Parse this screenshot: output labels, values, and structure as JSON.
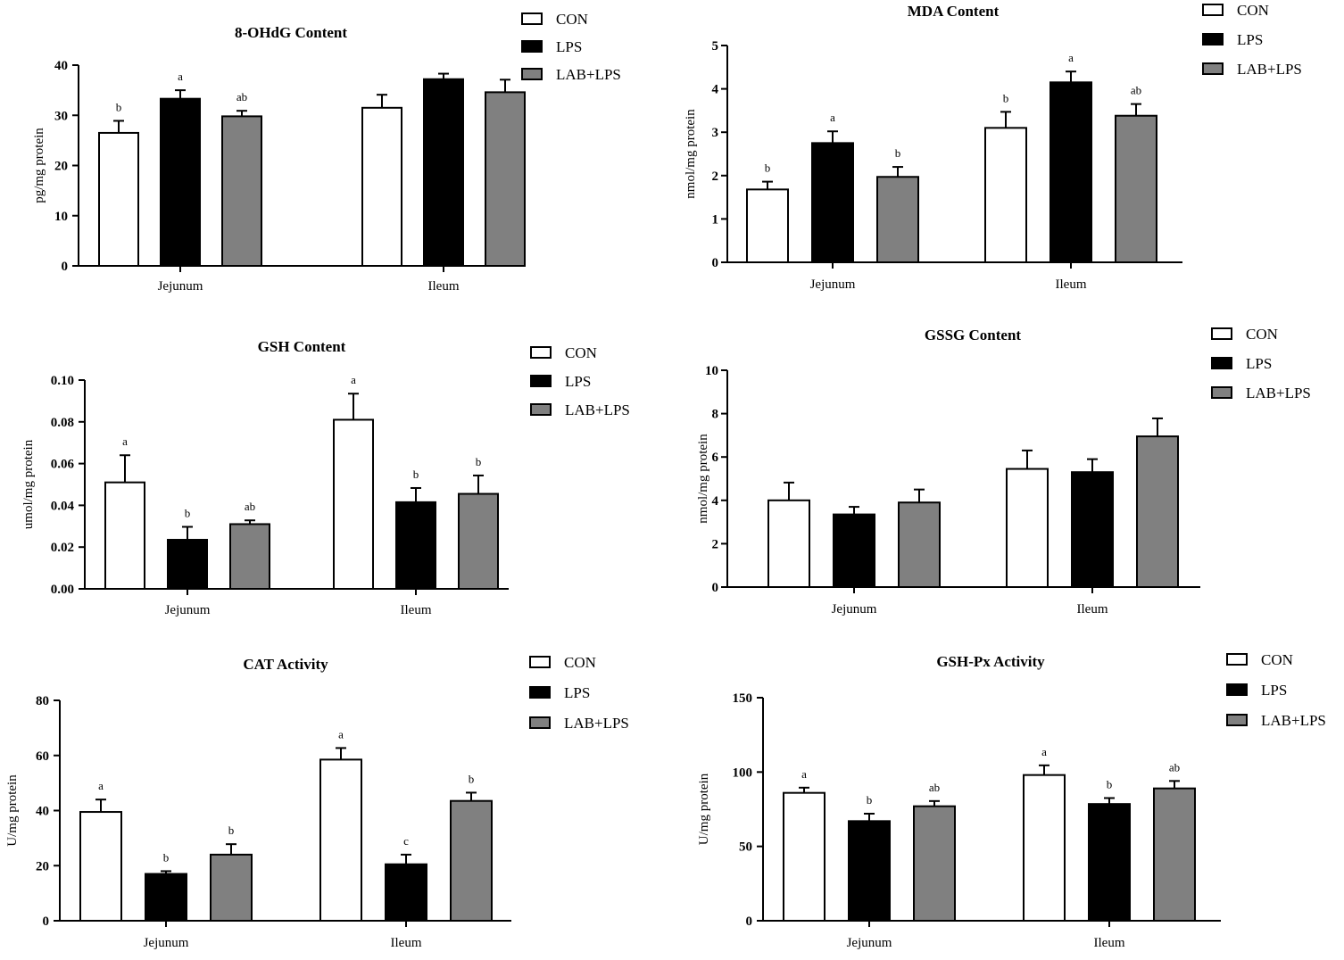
{
  "colors": {
    "CON": "#ffffff",
    "LPS": "#000000",
    "LAB+LPS": "#808080",
    "axis": "#000000"
  },
  "chart_data": [
    {
      "type": "bar",
      "title": "8-OHdG Content",
      "ylabel": "pg/mg protein",
      "categories": [
        "Jejunum",
        "Ileum"
      ],
      "ylim": [
        0,
        40
      ],
      "yticks": [
        0,
        10,
        20,
        30,
        40
      ],
      "tick_labels": [
        "0",
        "10",
        "20",
        "30",
        "40"
      ],
      "legend_position": "top-right",
      "grid": false,
      "series": [
        {
          "name": "CON",
          "values": [
            26.5,
            31.5
          ],
          "errors": [
            2.4,
            2.6
          ],
          "labels": [
            "b",
            ""
          ]
        },
        {
          "name": "LPS",
          "values": [
            33.3,
            37.2
          ],
          "errors": [
            1.7,
            1.1
          ],
          "labels": [
            "a",
            ""
          ]
        },
        {
          "name": "LAB+LPS",
          "values": [
            29.8,
            34.6
          ],
          "errors": [
            1.1,
            2.5
          ],
          "labels": [
            "ab",
            ""
          ]
        }
      ]
    },
    {
      "type": "bar",
      "title": "MDA Content",
      "ylabel": "nmol/mg protein",
      "categories": [
        "Jejunum",
        "Ileum"
      ],
      "ylim": [
        0,
        5
      ],
      "yticks": [
        0,
        1,
        2,
        3,
        4,
        5
      ],
      "tick_labels": [
        "0",
        "1",
        "2",
        "3",
        "4",
        "5"
      ],
      "legend_position": "top-right",
      "grid": false,
      "series": [
        {
          "name": "CON",
          "values": [
            1.68,
            3.1
          ],
          "errors": [
            0.18,
            0.37
          ],
          "labels": [
            "b",
            "b"
          ]
        },
        {
          "name": "LPS",
          "values": [
            2.75,
            4.15
          ],
          "errors": [
            0.27,
            0.25
          ],
          "labels": [
            "a",
            "a"
          ]
        },
        {
          "name": "LAB+LPS",
          "values": [
            1.97,
            3.38
          ],
          "errors": [
            0.23,
            0.27
          ],
          "labels": [
            "b",
            "ab"
          ]
        }
      ]
    },
    {
      "type": "bar",
      "title": "GSH Content",
      "ylabel": "umol/mg protein",
      "categories": [
        "Jejunum",
        "Ileum"
      ],
      "ylim": [
        0,
        0.1
      ],
      "yticks": [
        0,
        0.02,
        0.04,
        0.06,
        0.08,
        0.1
      ],
      "tick_labels": [
        "0.00",
        "0.02",
        "0.04",
        "0.06",
        "0.08",
        "0.10"
      ],
      "legend_position": "top-right",
      "grid": false,
      "series": [
        {
          "name": "CON",
          "values": [
            0.051,
            0.081
          ],
          "errors": [
            0.013,
            0.0125
          ],
          "labels": [
            "a",
            "a"
          ]
        },
        {
          "name": "LPS",
          "values": [
            0.0235,
            0.0415
          ],
          "errors": [
            0.0062,
            0.0068
          ],
          "labels": [
            "b",
            "b"
          ]
        },
        {
          "name": "LAB+LPS",
          "values": [
            0.031,
            0.0455
          ],
          "errors": [
            0.0018,
            0.0088
          ],
          "labels": [
            "ab",
            "b"
          ]
        }
      ]
    },
    {
      "type": "bar",
      "title": "GSSG Content",
      "ylabel": "nmol/mg protein",
      "categories": [
        "Jejunum",
        "Ileum"
      ],
      "ylim": [
        0,
        10
      ],
      "yticks": [
        0,
        2,
        4,
        6,
        8,
        10
      ],
      "tick_labels": [
        "0",
        "2",
        "4",
        "6",
        "8",
        "10"
      ],
      "legend_position": "top-right",
      "grid": false,
      "series": [
        {
          "name": "CON",
          "values": [
            4.0,
            5.45
          ],
          "errors": [
            0.82,
            0.85
          ],
          "labels": [
            "",
            ""
          ]
        },
        {
          "name": "LPS",
          "values": [
            3.35,
            5.3
          ],
          "errors": [
            0.35,
            0.6
          ],
          "labels": [
            "",
            ""
          ]
        },
        {
          "name": "LAB+LPS",
          "values": [
            3.9,
            6.95
          ],
          "errors": [
            0.6,
            0.83
          ],
          "labels": [
            "",
            ""
          ]
        }
      ]
    },
    {
      "type": "bar",
      "title": "CAT Activity",
      "ylabel": "U/mg protein",
      "categories": [
        "Jejunum",
        "Ileum"
      ],
      "ylim": [
        0,
        80
      ],
      "yticks": [
        0,
        20,
        40,
        60,
        80
      ],
      "tick_labels": [
        "0",
        "20",
        "40",
        "60",
        "80"
      ],
      "legend_position": "top-right",
      "grid": false,
      "series": [
        {
          "name": "CON",
          "values": [
            39.5,
            58.5
          ],
          "errors": [
            4.5,
            4.2
          ],
          "labels": [
            "a",
            "a"
          ]
        },
        {
          "name": "LPS",
          "values": [
            17.0,
            20.5
          ],
          "errors": [
            1.0,
            3.5
          ],
          "labels": [
            "b",
            "c"
          ]
        },
        {
          "name": "LAB+LPS",
          "values": [
            24.0,
            43.5
          ],
          "errors": [
            3.8,
            3.0
          ],
          "labels": [
            "b",
            "b"
          ]
        }
      ]
    },
    {
      "type": "bar",
      "title": "GSH-Px Activity",
      "ylabel": "U/mg protein",
      "categories": [
        "Jejunum",
        "Ileum"
      ],
      "ylim": [
        0,
        150
      ],
      "yticks": [
        0,
        50,
        100,
        150
      ],
      "tick_labels": [
        "0",
        "50",
        "100",
        "150"
      ],
      "legend_position": "top-right",
      "grid": false,
      "series": [
        {
          "name": "CON",
          "values": [
            86,
            98
          ],
          "errors": [
            3.5,
            6.5
          ],
          "labels": [
            "a",
            "a"
          ]
        },
        {
          "name": "LPS",
          "values": [
            67,
            78.5
          ],
          "errors": [
            5.0,
            4.0
          ],
          "labels": [
            "b",
            "b"
          ]
        },
        {
          "name": "LAB+LPS",
          "values": [
            77,
            89
          ],
          "errors": [
            3.5,
            5.0
          ],
          "labels": [
            "ab",
            "ab"
          ]
        }
      ]
    }
  ]
}
